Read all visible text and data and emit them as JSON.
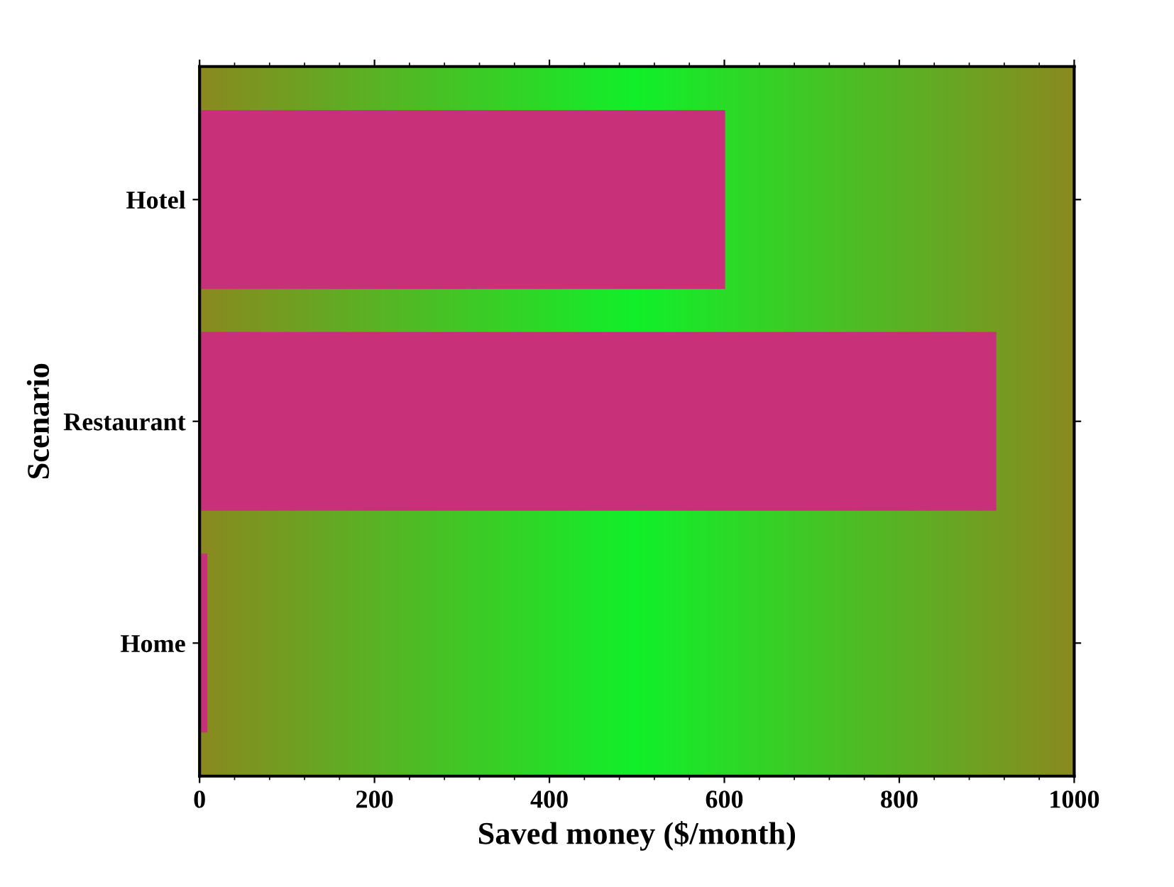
{
  "chart_data": {
    "type": "bar",
    "orientation": "horizontal",
    "xlabel": "Saved money ($/month)",
    "ylabel": "Scenario",
    "categories": [
      "Hotel",
      "Restaurant",
      "Home"
    ],
    "values": [
      600,
      910,
      8
    ],
    "color": "#c8307a",
    "xlim": [
      0,
      1000
    ],
    "xticks": [
      0,
      200,
      400,
      600,
      800,
      1000
    ],
    "grid": false
  }
}
